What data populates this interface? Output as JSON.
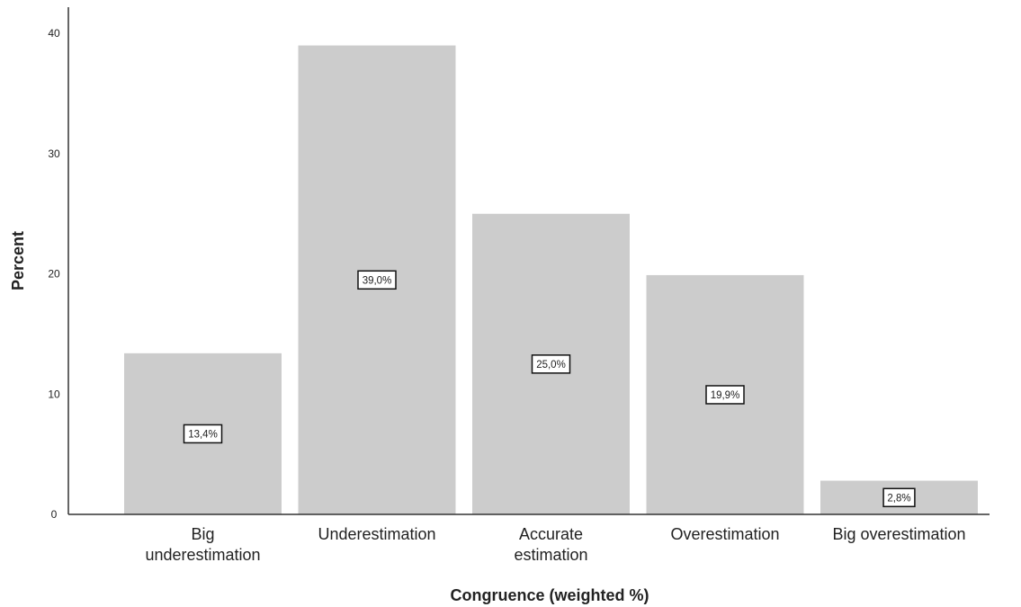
{
  "chart_data": {
    "type": "bar",
    "title": "",
    "xlabel": "Congruence (weighted %)",
    "ylabel": "Percent",
    "categories": [
      [
        "Big",
        "underestimation"
      ],
      [
        "Underestimation"
      ],
      [
        "Accurate",
        "estimation"
      ],
      [
        "Overestimation"
      ],
      [
        "Big overestimation"
      ]
    ],
    "values": [
      13.4,
      39.0,
      25.0,
      19.9,
      2.8
    ],
    "data_labels": [
      "13,4%",
      "39,0%",
      "25,0%",
      "19,9%",
      "2,8%"
    ],
    "yticks": [
      0,
      10,
      20,
      30,
      40
    ],
    "ylim": [
      0,
      42
    ],
    "grid": false,
    "legend": "none",
    "colors": {
      "bar": "#cccccc",
      "axis": "#333333",
      "label_box_border": "#111111",
      "label_box_fill": "#ffffff"
    }
  }
}
